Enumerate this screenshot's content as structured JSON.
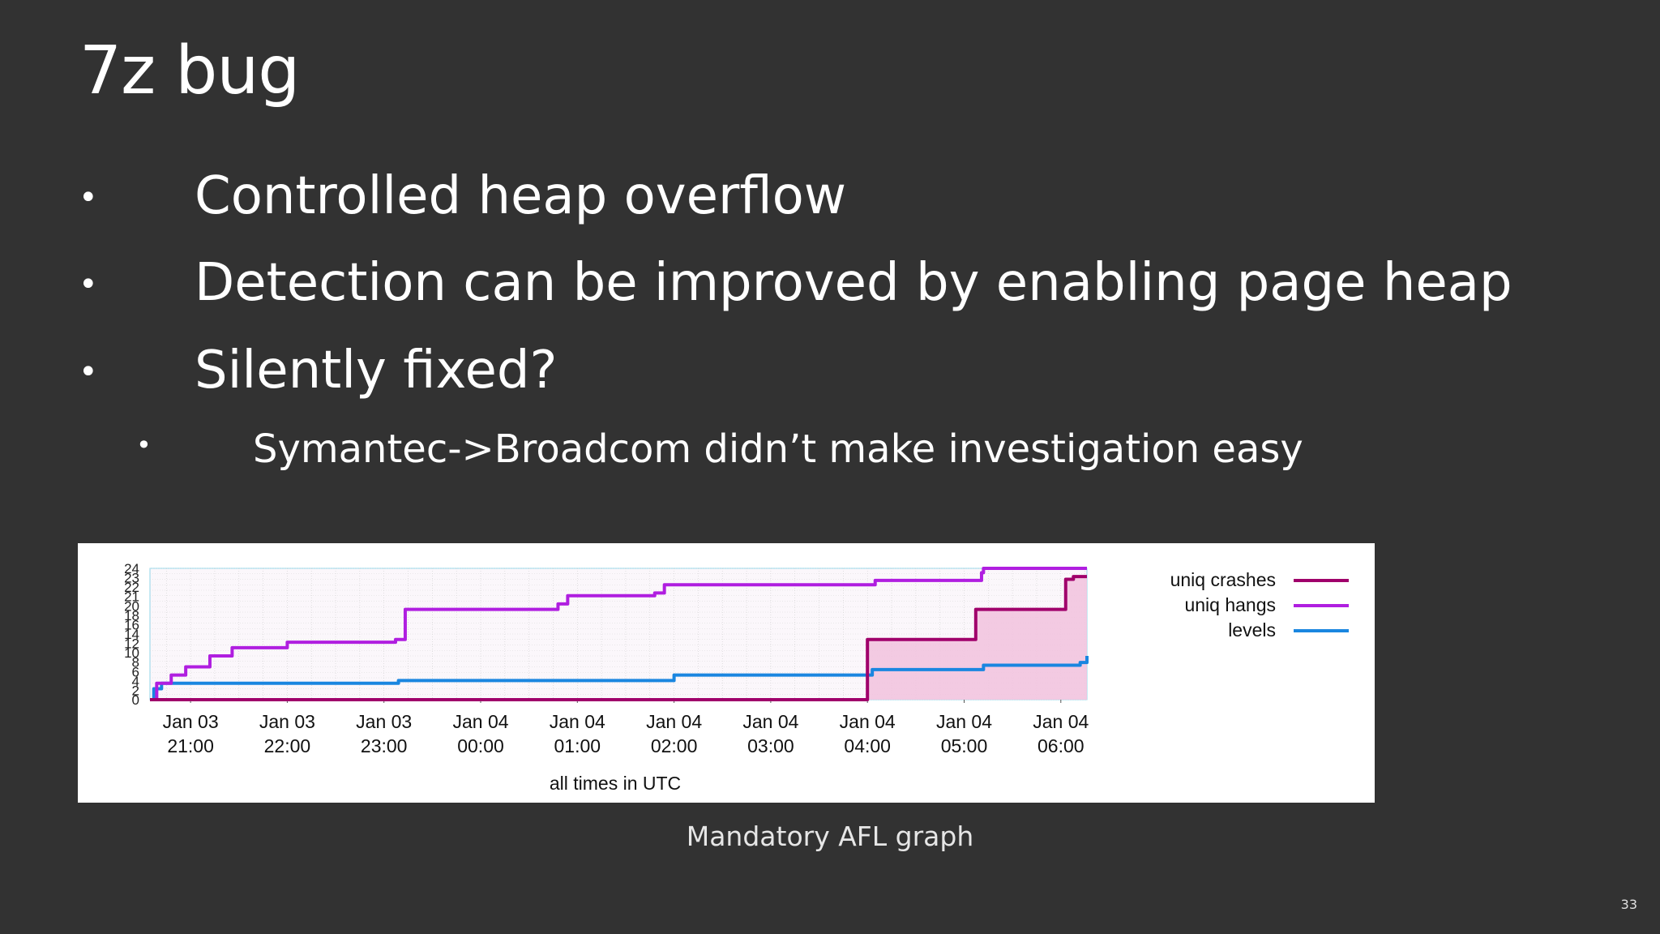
{
  "slide": {
    "title": "7z bug",
    "bullets": [
      {
        "marker": "•",
        "text": "Controlled heap overflow",
        "level": 1
      },
      {
        "marker": "•",
        "text": "Detection can be improved by enabling page heap",
        "level": 1
      },
      {
        "marker": "•",
        "text": "Silently fixed?",
        "level": 1
      },
      {
        "marker": "•",
        "text": "Symantec->Broadcom didn’t make investigation easy",
        "level": 2
      }
    ],
    "caption": "Mandatory AFL graph",
    "page_number": "33"
  },
  "colors": {
    "background": "#323232",
    "crashes": "#a0006b",
    "hangs": "#b01ee0",
    "levels": "#1a86e0",
    "crash_fill": "#f2c4df"
  },
  "chart_data": {
    "type": "line",
    "x_ticks": [
      {
        "line1": "Jan 03",
        "line2": "21:00",
        "t": 0
      },
      {
        "line1": "Jan 03",
        "line2": "22:00",
        "t": 1
      },
      {
        "line1": "Jan 03",
        "line2": "23:00",
        "t": 2
      },
      {
        "line1": "Jan 04",
        "line2": "00:00",
        "t": 3
      },
      {
        "line1": "Jan 04",
        "line2": "01:00",
        "t": 4
      },
      {
        "line1": "Jan 04",
        "line2": "02:00",
        "t": 5
      },
      {
        "line1": "Jan 04",
        "line2": "03:00",
        "t": 6
      },
      {
        "line1": "Jan 04",
        "line2": "04:00",
        "t": 7
      },
      {
        "line1": "Jan 04",
        "line2": "05:00",
        "t": 8
      },
      {
        "line1": "Jan 04",
        "line2": "06:00",
        "t": 9
      }
    ],
    "y_ticks": [
      "0",
      "2",
      "4",
      "6",
      "8",
      "10",
      "12",
      "14",
      "16",
      "18",
      "20",
      "21",
      "22",
      "23",
      "24"
    ],
    "xlim": [
      -0.42,
      9.27
    ],
    "ylim": [
      0,
      24
    ],
    "xlabel": "all times in UTC",
    "legend": "right",
    "series": [
      {
        "name": "uniq crashes",
        "color_key": "crashes",
        "fill": true,
        "points": [
          [
            -0.42,
            0
          ],
          [
            6.97,
            0
          ],
          [
            7.0,
            11
          ],
          [
            8.1,
            11
          ],
          [
            8.12,
            16.5
          ],
          [
            9.03,
            16.5
          ],
          [
            9.05,
            22
          ],
          [
            9.12,
            22
          ],
          [
            9.13,
            22.5
          ],
          [
            9.27,
            22.5
          ]
        ]
      },
      {
        "name": "uniq hangs",
        "color_key": "hangs",
        "fill": false,
        "points": [
          [
            -0.42,
            0
          ],
          [
            -0.35,
            3
          ],
          [
            -0.2,
            4.5
          ],
          [
            -0.05,
            6
          ],
          [
            0.2,
            8
          ],
          [
            0.43,
            9.5
          ],
          [
            1.0,
            10.5
          ],
          [
            2.12,
            11
          ],
          [
            2.22,
            16.5
          ],
          [
            3.8,
            17.5
          ],
          [
            3.9,
            19
          ],
          [
            4.8,
            19.5
          ],
          [
            4.9,
            21
          ],
          [
            7.08,
            21.8
          ],
          [
            8.18,
            23.2
          ],
          [
            8.2,
            24
          ],
          [
            9.27,
            24
          ]
        ]
      },
      {
        "name": "levels",
        "color_key": "levels",
        "fill": false,
        "points": [
          [
            -0.42,
            0
          ],
          [
            -0.38,
            2
          ],
          [
            -0.3,
            3
          ],
          [
            2.15,
            3.5
          ],
          [
            5.0,
            4.5
          ],
          [
            7.05,
            5.5
          ],
          [
            8.2,
            6.3
          ],
          [
            9.2,
            6.8
          ],
          [
            9.27,
            8
          ]
        ]
      }
    ]
  }
}
